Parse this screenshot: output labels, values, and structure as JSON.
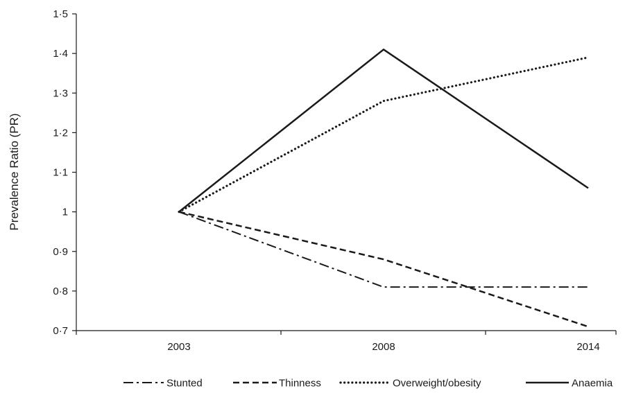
{
  "chart_data": {
    "type": "line",
    "title": "",
    "xlabel": "",
    "ylabel": "Prevalence Ratio (PR)",
    "categories": [
      "2003",
      "2008",
      "2014"
    ],
    "y_ticks": [
      "0·7",
      "0·8",
      "0·9",
      "1",
      "1·1",
      "1·2",
      "1·3",
      "1·4",
      "1·5"
    ],
    "ylim": [
      0.7,
      1.5
    ],
    "grid": false,
    "legend_position": "bottom",
    "series": [
      {
        "name": "Stunted",
        "values": [
          1.0,
          0.81,
          0.81
        ],
        "style": "dashdot"
      },
      {
        "name": "Thinness",
        "values": [
          1.0,
          0.88,
          0.71
        ],
        "style": "dashed"
      },
      {
        "name": "Overweight/obesity",
        "values": [
          1.0,
          1.28,
          1.39
        ],
        "style": "dotted"
      },
      {
        "name": "Anaemia",
        "values": [
          1.0,
          1.41,
          1.06
        ],
        "style": "solid"
      }
    ],
    "line_color": "#1a1a1a"
  }
}
